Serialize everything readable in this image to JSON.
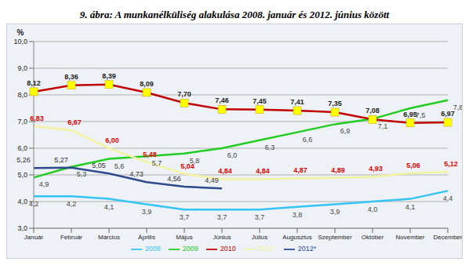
{
  "chart_data": {
    "type": "line",
    "title": "9. ábra: A munkanélküliség alakulása 2008. január és 2012. június között",
    "ylabel": "%",
    "categories": [
      "Január",
      "Február",
      "Március",
      "Április",
      "Május",
      "Június",
      "Július",
      "Augusztus",
      "Szeptember",
      "Október",
      "November",
      "December"
    ],
    "series": [
      {
        "name": "2008",
        "color": "#33c4f5",
        "marker": "none",
        "values": [
          4.2,
          4.2,
          4.1,
          3.9,
          3.7,
          3.7,
          3.7,
          3.8,
          3.9,
          4.0,
          4.1,
          4.4
        ],
        "value_labels": [
          "4,2",
          "4,2",
          "4,1",
          "3,9",
          "3,7",
          "3,7",
          "3,7",
          "3,8",
          "3,9",
          "4,0",
          "4,1",
          "4,4"
        ]
      },
      {
        "name": "2009",
        "color": "#22cc22",
        "marker": "none",
        "values": [
          4.9,
          5.3,
          5.6,
          5.7,
          5.8,
          6.0,
          6.3,
          6.6,
          6.9,
          7.1,
          7.5,
          7.8
        ],
        "value_labels": [
          "4,9",
          "5,3",
          "5,6",
          "5,7",
          "5,8",
          "6,0",
          "6,3",
          "6,6",
          "6,9",
          "7,1",
          "7,5",
          "7,8"
        ]
      },
      {
        "name": "2010",
        "color": "#c00000",
        "marker": "square",
        "values": [
          8.12,
          8.36,
          8.39,
          8.09,
          7.7,
          7.46,
          7.45,
          7.41,
          7.35,
          7.08,
          6.95,
          6.97
        ],
        "value_labels": [
          "8,12",
          "8,36",
          "8,39",
          "8,09",
          "7,70",
          "7,46",
          "7,45",
          "7,41",
          "7,35",
          "7,08",
          "6,95",
          "6,97"
        ]
      },
      {
        "name": "2011*",
        "color": "#f2f2a0",
        "marker": "none",
        "values": [
          6.83,
          6.67,
          6.0,
          5.48,
          5.04,
          4.84,
          4.84,
          4.87,
          4.89,
          4.93,
          5.06,
          5.12
        ],
        "value_labels": [
          "6,83",
          "6,67",
          "6,00",
          "5,48",
          "5,04",
          "4,84",
          "4,84",
          "4,87",
          "4,89",
          "4,93",
          "5,06",
          "5,12"
        ]
      },
      {
        "name": "2012*",
        "color": "#2e4a8c",
        "marker": "none",
        "values": [
          5.26,
          5.27,
          5.05,
          4.73,
          4.56,
          4.49,
          null,
          null,
          null,
          null,
          null,
          null
        ],
        "value_labels": [
          "5,26",
          "5,27",
          "5,05",
          "4,73",
          "4,56",
          "4,49",
          null,
          null,
          null,
          null,
          null,
          null
        ]
      }
    ],
    "ylim": [
      3,
      10
    ],
    "yticks": [
      {
        "value": 3,
        "label": "3,0"
      },
      {
        "value": 4,
        "label": "4,0"
      },
      {
        "value": 5,
        "label": "5,0"
      },
      {
        "value": 6,
        "label": "6,0"
      },
      {
        "value": 7,
        "label": "7,0"
      },
      {
        "value": 8,
        "label": "8,0"
      },
      {
        "value": 9,
        "label": "9,0"
      },
      {
        "value": 10,
        "label": "10,0"
      }
    ],
    "grid": true,
    "legend": "bottom",
    "data_labels": true
  }
}
